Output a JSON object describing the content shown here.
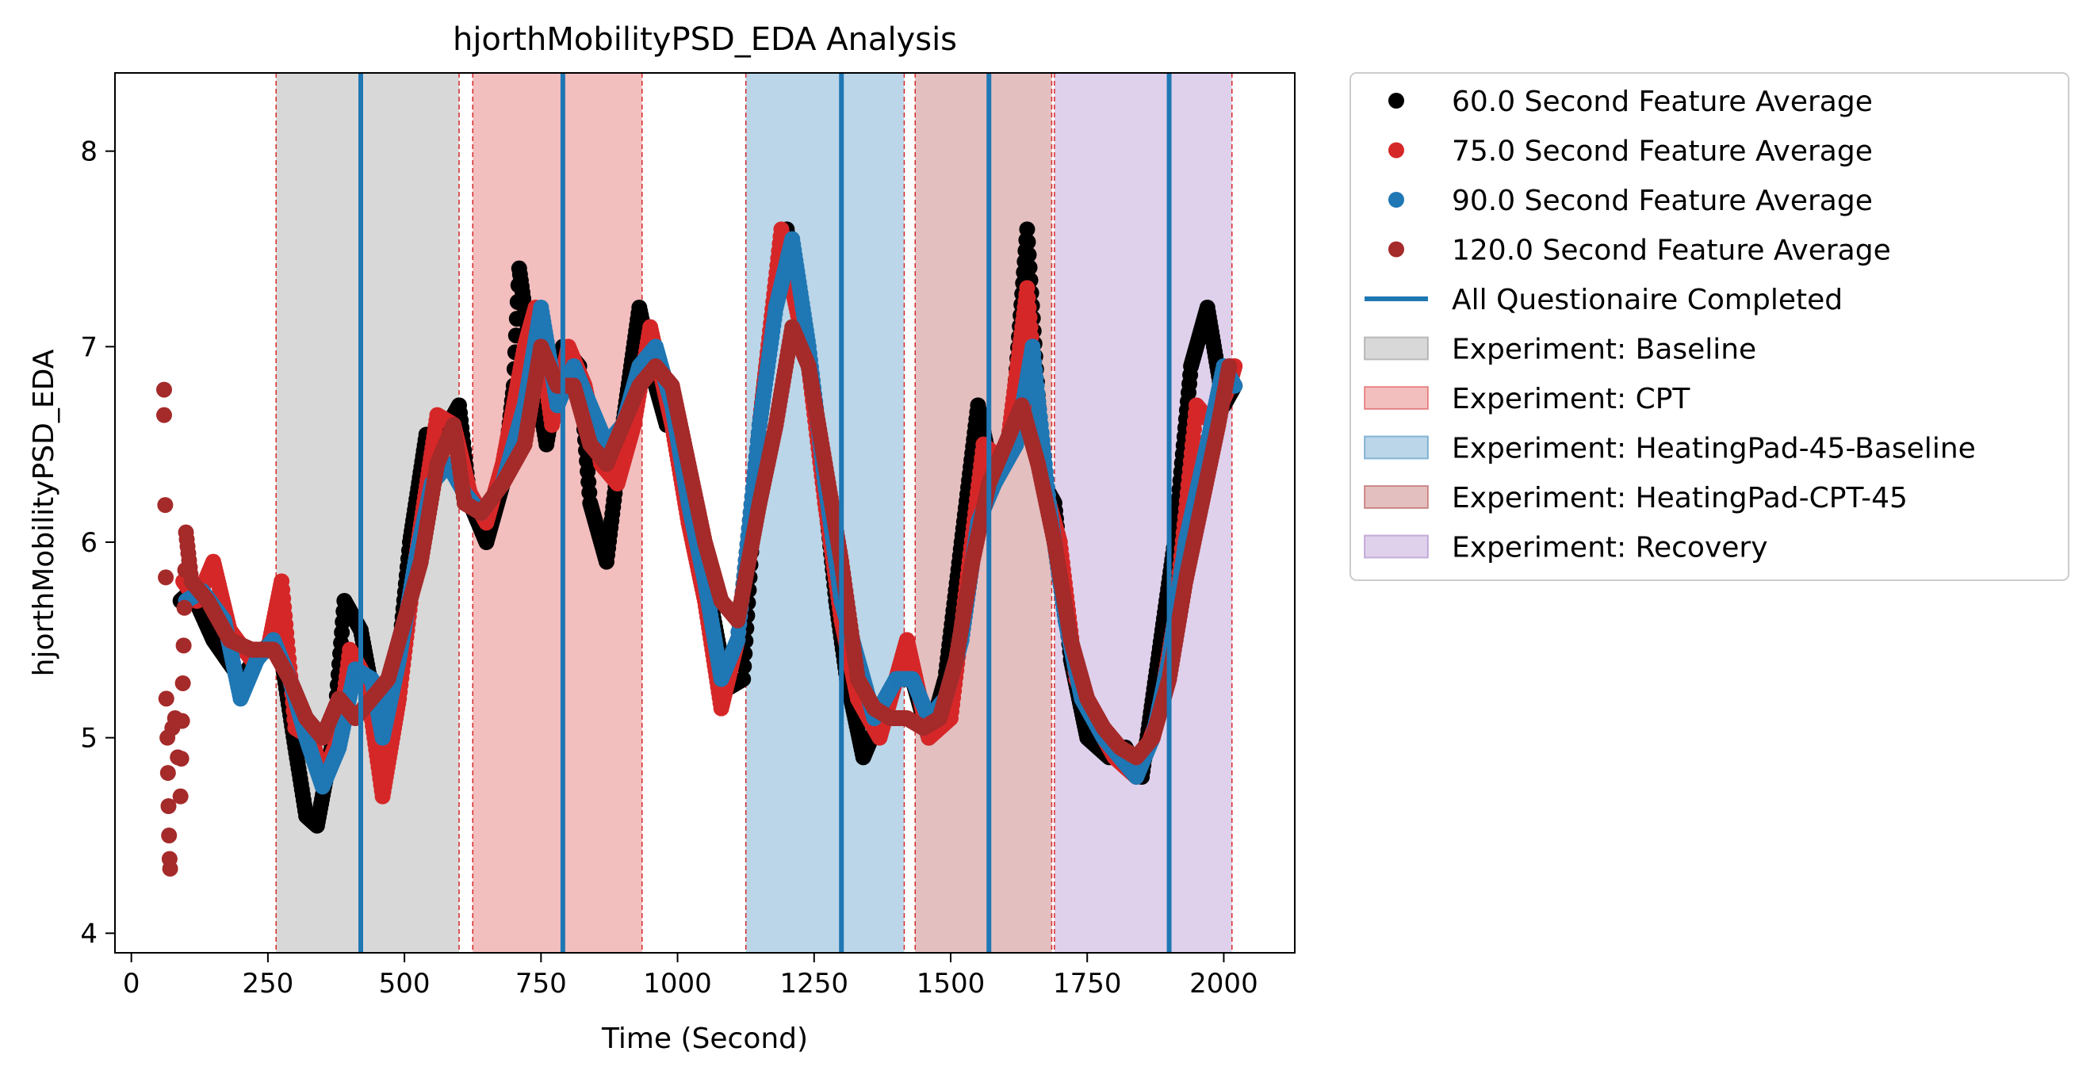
{
  "chart_data": {
    "type": "scatter",
    "title": "hjorthMobilityPSD_EDA Analysis",
    "xlabel": "Time (Second)",
    "ylabel": "hjorthMobilityPSD_EDA",
    "xlim": [
      -30,
      2130
    ],
    "ylim": [
      3.9,
      8.4
    ],
    "xticks": [
      0,
      250,
      500,
      750,
      1000,
      1250,
      1500,
      1750,
      2000
    ],
    "yticks": [
      4,
      5,
      6,
      7,
      8
    ],
    "grid": false,
    "legend_position": "outside-right",
    "series": [
      {
        "name": "60.0 Second Feature Average",
        "color": "#000000",
        "window": 60,
        "points": [
          [
            90,
            5.7
          ],
          [
            110,
            5.75
          ],
          [
            150,
            5.5
          ],
          [
            200,
            5.3
          ],
          [
            240,
            5.45
          ],
          [
            270,
            5.5
          ],
          [
            300,
            4.95
          ],
          [
            320,
            4.6
          ],
          [
            340,
            4.55
          ],
          [
            370,
            5.0
          ],
          [
            390,
            5.7
          ],
          [
            420,
            5.55
          ],
          [
            460,
            4.95
          ],
          [
            480,
            5.15
          ],
          [
            510,
            6.0
          ],
          [
            540,
            6.55
          ],
          [
            560,
            6.5
          ],
          [
            600,
            6.7
          ],
          [
            620,
            6.2
          ],
          [
            650,
            6.0
          ],
          [
            680,
            6.3
          ],
          [
            700,
            6.8
          ],
          [
            710,
            7.4
          ],
          [
            730,
            7.0
          ],
          [
            760,
            6.5
          ],
          [
            790,
            7.0
          ],
          [
            820,
            6.9
          ],
          [
            840,
            6.2
          ],
          [
            870,
            5.9
          ],
          [
            900,
            6.6
          ],
          [
            930,
            7.2
          ],
          [
            960,
            6.8
          ],
          [
            980,
            6.6
          ],
          [
            1000,
            6.6
          ],
          [
            1030,
            6.2
          ],
          [
            1060,
            5.7
          ],
          [
            1090,
            5.25
          ],
          [
            1120,
            5.3
          ],
          [
            1150,
            6.6
          ],
          [
            1180,
            7.3
          ],
          [
            1200,
            7.6
          ],
          [
            1230,
            7.1
          ],
          [
            1260,
            6.5
          ],
          [
            1290,
            5.7
          ],
          [
            1310,
            5.3
          ],
          [
            1340,
            4.9
          ],
          [
            1370,
            5.1
          ],
          [
            1400,
            5.3
          ],
          [
            1430,
            5.3
          ],
          [
            1460,
            5.0
          ],
          [
            1490,
            5.3
          ],
          [
            1520,
            6.0
          ],
          [
            1550,
            6.7
          ],
          [
            1580,
            6.3
          ],
          [
            1610,
            6.5
          ],
          [
            1640,
            7.6
          ],
          [
            1670,
            6.3
          ],
          [
            1690,
            6.2
          ],
          [
            1720,
            5.4
          ],
          [
            1750,
            5.0
          ],
          [
            1790,
            4.9
          ],
          [
            1820,
            4.95
          ],
          [
            1850,
            4.8
          ],
          [
            1880,
            5.4
          ],
          [
            1910,
            6.0
          ],
          [
            1940,
            6.9
          ],
          [
            1970,
            7.2
          ],
          [
            2000,
            6.7
          ],
          [
            2020,
            6.8
          ]
        ]
      },
      {
        "name": "75.0 Second Feature Average",
        "color": "#d62728",
        "window": 75,
        "points": [
          [
            95,
            5.8
          ],
          [
            120,
            5.7
          ],
          [
            150,
            5.9
          ],
          [
            180,
            5.55
          ],
          [
            220,
            5.4
          ],
          [
            250,
            5.45
          ],
          [
            275,
            5.8
          ],
          [
            300,
            5.05
          ],
          [
            330,
            5.0
          ],
          [
            350,
            4.8
          ],
          [
            380,
            5.0
          ],
          [
            400,
            5.45
          ],
          [
            430,
            5.3
          ],
          [
            460,
            4.7
          ],
          [
            490,
            5.2
          ],
          [
            520,
            5.9
          ],
          [
            560,
            6.65
          ],
          [
            590,
            6.6
          ],
          [
            620,
            6.25
          ],
          [
            650,
            6.1
          ],
          [
            680,
            6.4
          ],
          [
            720,
            7.0
          ],
          [
            740,
            7.2
          ],
          [
            770,
            6.6
          ],
          [
            800,
            7.0
          ],
          [
            830,
            6.8
          ],
          [
            860,
            6.4
          ],
          [
            890,
            6.3
          ],
          [
            920,
            6.6
          ],
          [
            950,
            7.1
          ],
          [
            990,
            6.6
          ],
          [
            1020,
            6.1
          ],
          [
            1050,
            5.7
          ],
          [
            1080,
            5.15
          ],
          [
            1110,
            5.5
          ],
          [
            1150,
            6.6
          ],
          [
            1190,
            7.6
          ],
          [
            1210,
            7.3
          ],
          [
            1240,
            6.9
          ],
          [
            1270,
            6.2
          ],
          [
            1300,
            5.6
          ],
          [
            1330,
            5.2
          ],
          [
            1370,
            5.0
          ],
          [
            1400,
            5.3
          ],
          [
            1420,
            5.5
          ],
          [
            1460,
            5.0
          ],
          [
            1500,
            5.1
          ],
          [
            1530,
            5.8
          ],
          [
            1560,
            6.5
          ],
          [
            1600,
            6.4
          ],
          [
            1640,
            7.3
          ],
          [
            1670,
            6.3
          ],
          [
            1700,
            6.0
          ],
          [
            1730,
            5.3
          ],
          [
            1770,
            5.05
          ],
          [
            1800,
            4.9
          ],
          [
            1840,
            4.8
          ],
          [
            1880,
            5.1
          ],
          [
            1910,
            5.6
          ],
          [
            1950,
            6.7
          ],
          [
            1980,
            6.6
          ],
          [
            2010,
            6.8
          ],
          [
            2020,
            6.9
          ]
        ]
      },
      {
        "name": "90.0 Second Feature Average",
        "color": "#1f77b4",
        "window": 90,
        "points": [
          [
            100,
            5.7
          ],
          [
            130,
            5.75
          ],
          [
            170,
            5.6
          ],
          [
            200,
            5.2
          ],
          [
            230,
            5.4
          ],
          [
            260,
            5.5
          ],
          [
            290,
            5.3
          ],
          [
            320,
            5.0
          ],
          [
            350,
            4.75
          ],
          [
            380,
            4.95
          ],
          [
            410,
            5.35
          ],
          [
            440,
            5.3
          ],
          [
            460,
            5.0
          ],
          [
            490,
            5.4
          ],
          [
            520,
            5.9
          ],
          [
            550,
            6.3
          ],
          [
            580,
            6.4
          ],
          [
            610,
            6.25
          ],
          [
            640,
            6.15
          ],
          [
            680,
            6.3
          ],
          [
            720,
            6.7
          ],
          [
            750,
            7.2
          ],
          [
            780,
            6.7
          ],
          [
            810,
            6.9
          ],
          [
            840,
            6.7
          ],
          [
            870,
            6.5
          ],
          [
            900,
            6.6
          ],
          [
            930,
            6.9
          ],
          [
            960,
            7.0
          ],
          [
            990,
            6.7
          ],
          [
            1020,
            6.2
          ],
          [
            1050,
            5.8
          ],
          [
            1080,
            5.3
          ],
          [
            1110,
            5.5
          ],
          [
            1150,
            6.6
          ],
          [
            1180,
            7.2
          ],
          [
            1210,
            7.55
          ],
          [
            1240,
            7.0
          ],
          [
            1270,
            6.3
          ],
          [
            1300,
            5.7
          ],
          [
            1330,
            5.4
          ],
          [
            1360,
            5.1
          ],
          [
            1400,
            5.3
          ],
          [
            1430,
            5.3
          ],
          [
            1460,
            5.1
          ],
          [
            1490,
            5.2
          ],
          [
            1520,
            5.5
          ],
          [
            1550,
            6.1
          ],
          [
            1580,
            6.3
          ],
          [
            1620,
            6.5
          ],
          [
            1650,
            7.0
          ],
          [
            1680,
            6.2
          ],
          [
            1710,
            5.6
          ],
          [
            1740,
            5.2
          ],
          [
            1780,
            5.0
          ],
          [
            1810,
            4.9
          ],
          [
            1840,
            4.8
          ],
          [
            1870,
            5.0
          ],
          [
            1900,
            5.4
          ],
          [
            1930,
            6.0
          ],
          [
            1970,
            6.5
          ],
          [
            2000,
            6.9
          ],
          [
            2020,
            6.8
          ]
        ]
      },
      {
        "name": "120.0 Second Feature Average",
        "color": "#a52a2a",
        "window": 120,
        "points": [
          [
            60,
            6.78
          ],
          [
            60,
            6.65
          ],
          [
            62,
            6.19
          ],
          [
            63,
            5.82
          ],
          [
            64,
            5.2
          ],
          [
            66,
            5.0
          ],
          [
            67,
            4.82
          ],
          [
            68,
            4.65
          ],
          [
            69,
            4.5
          ],
          [
            70,
            4.38
          ],
          [
            71,
            4.33
          ],
          [
            75,
            5.05
          ],
          [
            80,
            5.1
          ],
          [
            85,
            4.9
          ],
          [
            90,
            4.7
          ],
          [
            100,
            6.05
          ],
          [
            110,
            5.8
          ],
          [
            140,
            5.7
          ],
          [
            180,
            5.5
          ],
          [
            220,
            5.45
          ],
          [
            260,
            5.45
          ],
          [
            290,
            5.3
          ],
          [
            320,
            5.1
          ],
          [
            350,
            5.0
          ],
          [
            380,
            5.2
          ],
          [
            410,
            5.1
          ],
          [
            440,
            5.2
          ],
          [
            470,
            5.3
          ],
          [
            500,
            5.6
          ],
          [
            530,
            5.9
          ],
          [
            560,
            6.4
          ],
          [
            590,
            6.6
          ],
          [
            610,
            6.2
          ],
          [
            640,
            6.15
          ],
          [
            680,
            6.3
          ],
          [
            720,
            6.5
          ],
          [
            750,
            7.0
          ],
          [
            780,
            6.8
          ],
          [
            810,
            6.8
          ],
          [
            840,
            6.5
          ],
          [
            870,
            6.4
          ],
          [
            900,
            6.6
          ],
          [
            930,
            6.8
          ],
          [
            960,
            6.9
          ],
          [
            990,
            6.8
          ],
          [
            1020,
            6.4
          ],
          [
            1050,
            6.0
          ],
          [
            1080,
            5.7
          ],
          [
            1110,
            5.6
          ],
          [
            1150,
            6.2
          ],
          [
            1180,
            6.6
          ],
          [
            1210,
            7.1
          ],
          [
            1240,
            6.9
          ],
          [
            1270,
            6.4
          ],
          [
            1300,
            5.9
          ],
          [
            1330,
            5.3
          ],
          [
            1360,
            5.15
          ],
          [
            1390,
            5.1
          ],
          [
            1420,
            5.1
          ],
          [
            1450,
            5.05
          ],
          [
            1480,
            5.1
          ],
          [
            1510,
            5.4
          ],
          [
            1540,
            5.9
          ],
          [
            1570,
            6.3
          ],
          [
            1600,
            6.5
          ],
          [
            1630,
            6.7
          ],
          [
            1660,
            6.4
          ],
          [
            1690,
            6.0
          ],
          [
            1720,
            5.5
          ],
          [
            1750,
            5.2
          ],
          [
            1780,
            5.05
          ],
          [
            1810,
            4.95
          ],
          [
            1840,
            4.9
          ],
          [
            1870,
            5.0
          ],
          [
            1900,
            5.3
          ],
          [
            1930,
            5.8
          ],
          [
            1960,
            6.2
          ],
          [
            1990,
            6.6
          ],
          [
            2010,
            6.9
          ]
        ]
      }
    ],
    "questionnaire_lines": {
      "name": "All Questionaire Completed",
      "color": "#1f77b4",
      "x": [
        420,
        790,
        1300,
        1570,
        1900
      ]
    },
    "experiments": [
      {
        "name": "Experiment: Baseline",
        "color": "#7f7f7f",
        "start": 265,
        "end": 600
      },
      {
        "name": "Experiment: CPT",
        "color": "#d62728",
        "start": 625,
        "end": 935
      },
      {
        "name": "Experiment: HeatingPad-45-Baseline",
        "color": "#1f77b4",
        "start": 1125,
        "end": 1415
      },
      {
        "name": "Experiment: HeatingPad-CPT-45",
        "color": "#a52a2a",
        "start": 1435,
        "end": 1685
      },
      {
        "name": "Experiment: Recovery",
        "color": "#9467bd",
        "start": 1690,
        "end": 2015
      }
    ],
    "legend": [
      "60.0 Second Feature Average",
      "75.0 Second Feature Average",
      "90.0 Second Feature Average",
      "120.0 Second Feature Average",
      "All Questionaire Completed",
      "Experiment: Baseline",
      "Experiment: CPT",
      "Experiment: HeatingPad-45-Baseline",
      "Experiment: HeatingPad-CPT-45",
      "Experiment: Recovery"
    ]
  }
}
